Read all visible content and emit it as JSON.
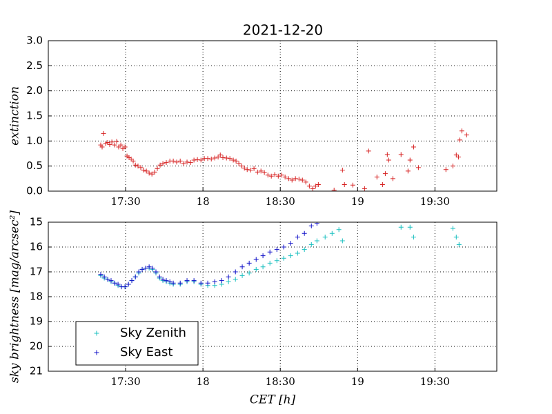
{
  "chart_data": [
    {
      "type": "scatter",
      "title": "2021-12-20",
      "ylabel": "extinction",
      "xlim": [
        17.0,
        19.9
      ],
      "xticks": [
        {
          "value": 17.5,
          "label": "17:30"
        },
        18,
        {
          "value": 18.5,
          "label": "18:30"
        },
        19,
        {
          "value": 19.5,
          "label": "19:30"
        }
      ],
      "ylim": [
        0,
        3
      ],
      "yticks": [
        {
          "value": 0,
          "label": "0.0"
        },
        {
          "value": 0.5,
          "label": "0.5"
        },
        {
          "value": 1,
          "label": "1.0"
        },
        {
          "value": 1.5,
          "label": "1.5"
        },
        {
          "value": 2,
          "label": "2.0"
        },
        {
          "value": 2.5,
          "label": "2.5"
        },
        {
          "value": 3,
          "label": "3.0"
        }
      ],
      "grid": true,
      "series": [
        {
          "color": "#d62020",
          "x": [
            17.339,
            17.348,
            17.357,
            17.371,
            17.384,
            17.397,
            17.411,
            17.429,
            17.442,
            17.455,
            17.469,
            17.482,
            17.496,
            17.509,
            17.522,
            17.536,
            17.549,
            17.563,
            17.58,
            17.598,
            17.616,
            17.634,
            17.652,
            17.67,
            17.688,
            17.705,
            17.723,
            17.741,
            17.763,
            17.786,
            17.808,
            17.83,
            17.853,
            17.875,
            17.897,
            17.92,
            17.942,
            17.964,
            17.987,
            18.009,
            18.031,
            18.054,
            18.076,
            18.098,
            18.112,
            18.129,
            18.152,
            18.174,
            18.196,
            18.214,
            18.232,
            18.25,
            18.268,
            18.286,
            18.308,
            18.33,
            18.353,
            18.375,
            18.397,
            18.42,
            18.442,
            18.464,
            18.487,
            18.509,
            18.531,
            18.554,
            18.576,
            18.598,
            18.621,
            18.643,
            18.665,
            18.688,
            18.71,
            18.728,
            18.746,
            18.848,
            18.902,
            18.915,
            18.969,
            19.045,
            19.071,
            19.125,
            19.161,
            19.179,
            19.192,
            19.201,
            19.228,
            19.281,
            19.326,
            19.339,
            19.362,
            19.393,
            19.571,
            19.616,
            19.638,
            19.652,
            19.661,
            19.674,
            19.705
          ],
          "values": [
            0.92,
            0.88,
            1.15,
            0.95,
            0.97,
            0.93,
            0.98,
            0.92,
            0.99,
            0.88,
            0.92,
            0.85,
            0.88,
            0.7,
            0.67,
            0.64,
            0.6,
            0.52,
            0.5,
            0.47,
            0.42,
            0.4,
            0.36,
            0.34,
            0.38,
            0.45,
            0.52,
            0.55,
            0.57,
            0.6,
            0.6,
            0.58,
            0.6,
            0.55,
            0.58,
            0.57,
            0.62,
            0.63,
            0.62,
            0.65,
            0.65,
            0.64,
            0.66,
            0.68,
            0.72,
            0.67,
            0.66,
            0.65,
            0.62,
            0.6,
            0.55,
            0.5,
            0.46,
            0.43,
            0.42,
            0.45,
            0.38,
            0.4,
            0.37,
            0.32,
            0.3,
            0.33,
            0.3,
            0.32,
            0.28,
            0.25,
            0.22,
            0.25,
            0.24,
            0.22,
            0.18,
            0.1,
            0.05,
            0.1,
            0.13,
            0.02,
            0.42,
            0.13,
            0.12,
            0.05,
            0.8,
            0.28,
            0.13,
            0.35,
            0.73,
            0.62,
            0.25,
            0.73,
            0.4,
            0.62,
            0.88,
            0.47,
            0.43,
            0.5,
            0.72,
            0.68,
            1.02,
            1.2,
            1.12
          ]
        }
      ]
    },
    {
      "type": "scatter",
      "xlabel": "CET [h]",
      "ylabel": "sky brightness [mag/arcsec²]",
      "xlim": [
        17.0,
        19.9
      ],
      "xticks": [
        {
          "value": 17.5,
          "label": "17:30"
        },
        18,
        {
          "value": 18.5,
          "label": "18:30"
        },
        19,
        {
          "value": 19.5,
          "label": "19:30"
        }
      ],
      "ylim": [
        21,
        15
      ],
      "yticks": [
        15,
        16,
        17,
        18,
        19,
        20,
        21
      ],
      "grid": true,
      "legend": "lower left",
      "series": [
        {
          "name": "Sky Zenith",
          "color": "#17bfbf",
          "x": [
            17.339,
            17.362,
            17.384,
            17.406,
            17.429,
            17.451,
            17.473,
            17.496,
            17.518,
            17.54,
            17.563,
            17.585,
            17.607,
            17.629,
            17.652,
            17.674,
            17.696,
            17.719,
            17.741,
            17.763,
            17.786,
            17.808,
            17.853,
            17.897,
            17.942,
            17.987,
            18.031,
            18.076,
            18.121,
            18.165,
            18.21,
            18.254,
            18.299,
            18.344,
            18.388,
            18.433,
            18.478,
            18.522,
            18.567,
            18.612,
            18.656,
            18.701,
            18.737,
            18.79,
            18.835,
            18.879,
            18.902,
            19.281,
            19.339,
            19.362,
            19.616,
            19.638,
            19.656
          ],
          "values": [
            17.15,
            17.25,
            17.3,
            17.4,
            17.45,
            17.55,
            17.6,
            17.6,
            17.5,
            17.35,
            17.2,
            17.05,
            16.9,
            16.85,
            16.85,
            16.9,
            17.05,
            17.25,
            17.35,
            17.4,
            17.45,
            17.5,
            17.5,
            17.4,
            17.4,
            17.5,
            17.55,
            17.55,
            17.5,
            17.4,
            17.3,
            17.15,
            17.05,
            16.9,
            16.8,
            16.65,
            16.55,
            16.45,
            16.35,
            16.25,
            16.1,
            15.9,
            15.75,
            15.6,
            15.45,
            15.3,
            15.75,
            15.2,
            15.2,
            15.6,
            15.25,
            15.6,
            15.9
          ]
        },
        {
          "name": "Sky East",
          "color": "#1010c8",
          "x": [
            17.339,
            17.362,
            17.384,
            17.406,
            17.429,
            17.451,
            17.473,
            17.496,
            17.518,
            17.54,
            17.563,
            17.585,
            17.607,
            17.629,
            17.652,
            17.674,
            17.696,
            17.719,
            17.741,
            17.763,
            17.786,
            17.808,
            17.853,
            17.897,
            17.942,
            17.987,
            18.031,
            18.076,
            18.121,
            18.165,
            18.21,
            18.254,
            18.299,
            18.344,
            18.388,
            18.433,
            18.478,
            18.522,
            18.567,
            18.612,
            18.656,
            18.701,
            18.737
          ],
          "values": [
            17.1,
            17.2,
            17.3,
            17.35,
            17.45,
            17.5,
            17.6,
            17.6,
            17.5,
            17.35,
            17.2,
            17.0,
            16.9,
            16.85,
            16.8,
            16.85,
            17.0,
            17.2,
            17.3,
            17.35,
            17.4,
            17.45,
            17.45,
            17.35,
            17.35,
            17.45,
            17.45,
            17.4,
            17.35,
            17.2,
            17.0,
            16.8,
            16.65,
            16.5,
            16.35,
            16.2,
            16.1,
            16.0,
            15.85,
            15.6,
            15.45,
            15.15,
            15.05
          ]
        }
      ]
    }
  ]
}
